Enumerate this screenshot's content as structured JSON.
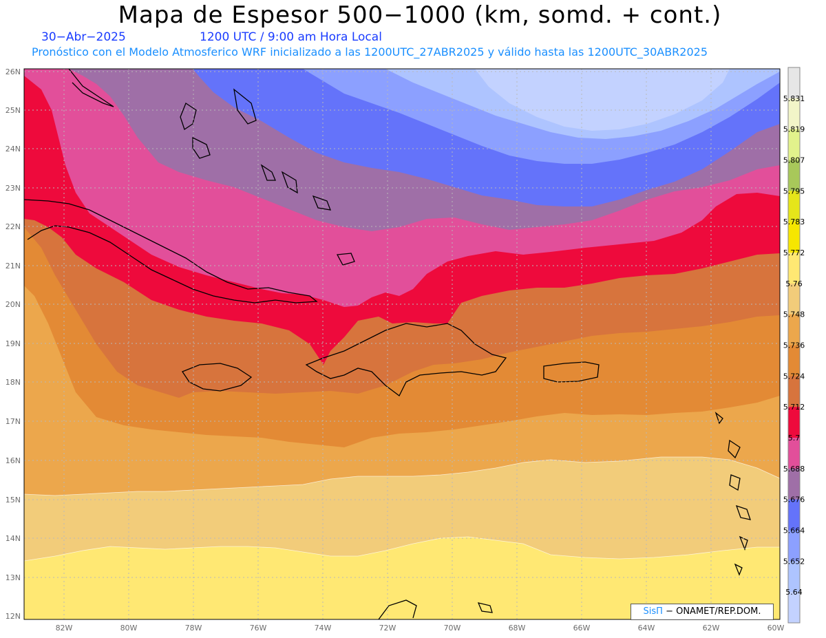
{
  "header": {
    "title": "Mapa de Espesor 500−1000 (km, somd. + cont.)",
    "date": "30−Abr−2025",
    "time": "1200 UTC / 9:00 am Hora Local",
    "model_line": "Pronóstico con el Modelo Atmosferico WRF inicializado a las 1200UTC_27ABR2025 y válido hasta las  1200UTC_30ABR2025"
  },
  "axes": {
    "lat_labels": [
      "26N",
      "25N",
      "24N",
      "23N",
      "22N",
      "21N",
      "20N",
      "19N",
      "18N",
      "17N",
      "16N",
      "15N",
      "14N",
      "13N",
      "12N"
    ],
    "lon_labels": [
      "82W",
      "80W",
      "78W",
      "76W",
      "74W",
      "72W",
      "70W",
      "68W",
      "66W",
      "64W",
      "62W",
      "60W"
    ]
  },
  "colorbar": {
    "labels": [
      "5.831",
      "5.819",
      "5.807",
      "5.795",
      "5.783",
      "5.772",
      "5.76",
      "5.748",
      "5.736",
      "5.724",
      "5.712",
      "5.7",
      "5.688",
      "5.676",
      "5.664",
      "5.652",
      "5.64"
    ],
    "colors": [
      "#e6e6e6",
      "#f2f5c8",
      "#e2f28c",
      "#a8c85a",
      "#e5e51a",
      "#f6e600",
      "#ffe873",
      "#f2cc7a",
      "#eca74c",
      "#e38a35",
      "#d7743d",
      "#ee0a3c",
      "#e24f9a",
      "#9f6fa7",
      "#6473fa",
      "#8ca0ff",
      "#aec4ff",
      "#c3d2ff"
    ]
  },
  "credit": {
    "sis": "SisΠ",
    "rest": " −  ONAMET/REP.DOM."
  },
  "colors": {
    "band_pink": "#e24f9a",
    "band_purple": "#9f6fa7",
    "band_red": "#ee0a3c",
    "band_orange_dark": "#d7743d",
    "band_orange": "#e38a35",
    "band_orange_light": "#eca74c",
    "band_tan": "#f2cc7a",
    "band_yellow": "#ffe873",
    "band_blue_dark": "#6473fa",
    "band_blue": "#8ca0ff",
    "band_blue_light": "#aec4ff",
    "band_blue_pale": "#c3d2ff"
  }
}
